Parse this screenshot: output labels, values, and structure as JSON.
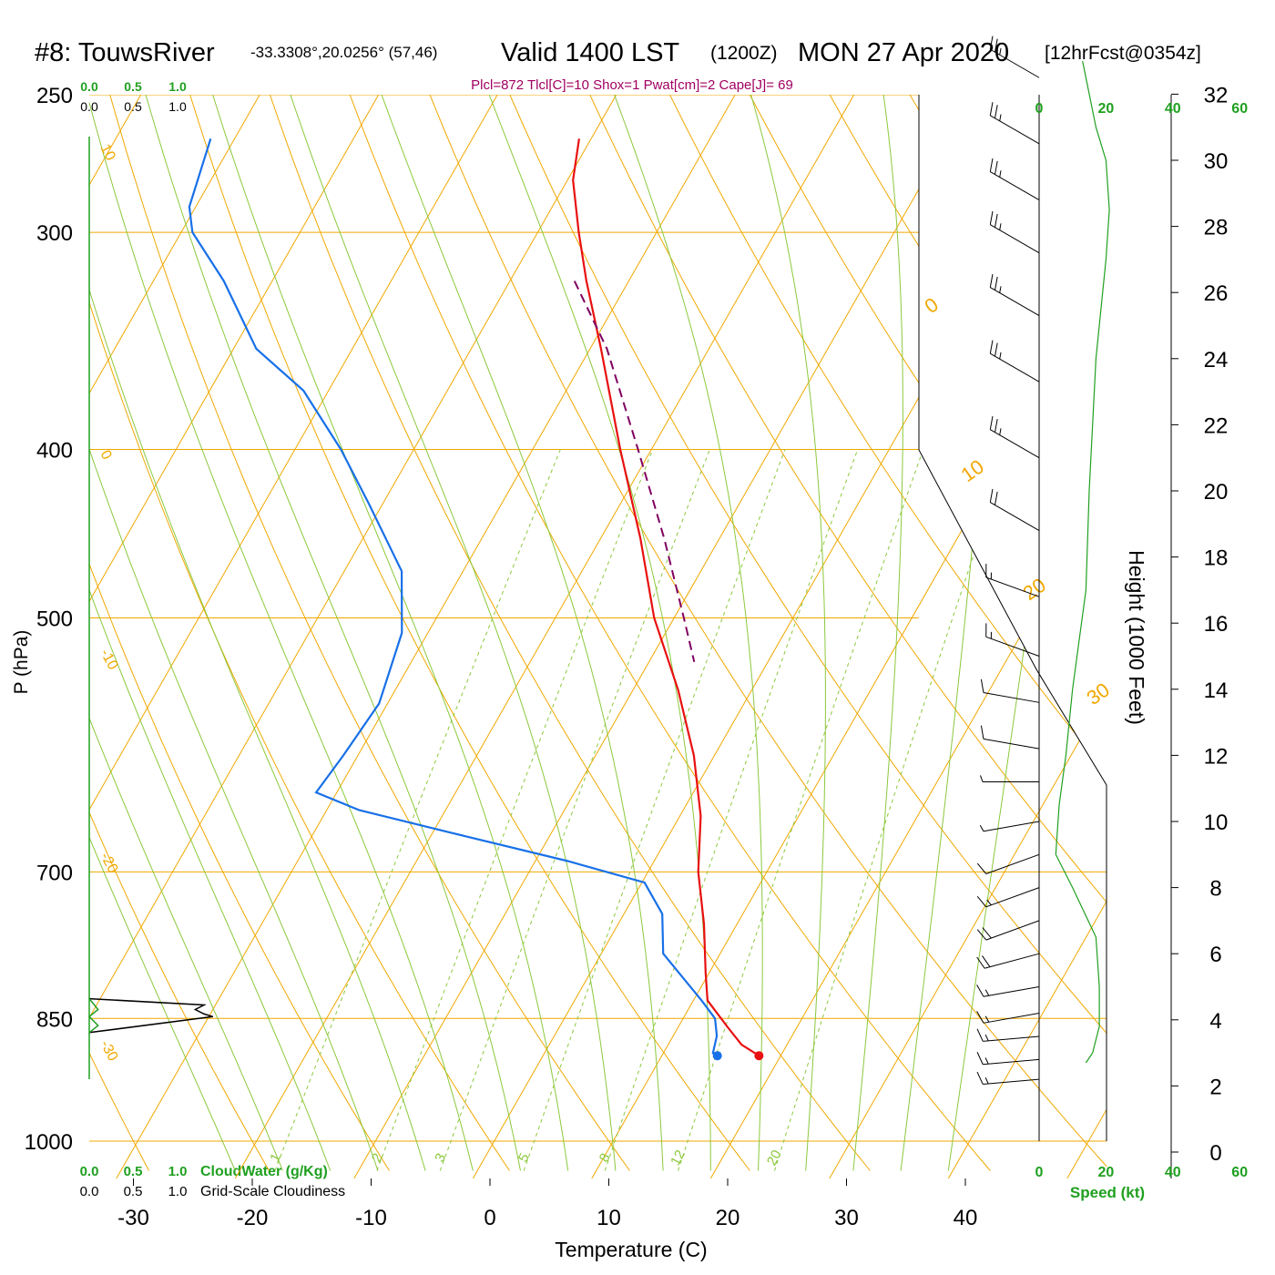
{
  "header": {
    "station": "#8: TouwsRiver",
    "coords": "-33.3308°,20.0256° (57,46)",
    "valid": "Valid 1400 LST",
    "zulu": "(1200Z)",
    "date": "MON 27 Apr 2020",
    "forecast": "[12hrFcst@0354z]",
    "indices": "Plcl=872 Tlcl[C]=10 Shox=1 Pwat[cm]=2 Cape[J]= 69"
  },
  "legend": {
    "cloudwater_ticks": [
      "0.0",
      "0.5",
      "1.0"
    ],
    "cloudiness_ticks": [
      "0.0",
      "0.5",
      "1.0"
    ],
    "cloudwater_label": "CloudWater (g/Kg)",
    "cloudiness_label": "Grid-Scale Cloudiness"
  },
  "colors": {
    "isotherm": "#f0a800",
    "dry_adiabat": "#f0a800",
    "moist_adiabat": "#8cc83c",
    "mixing_ratio": "#8cc83c",
    "temperature": "#e81010",
    "dewpoint": "#1870e8",
    "parcel": "#800060",
    "cloudwater": "#20a020",
    "speed": "#20a020",
    "indices": "#a00060"
  },
  "chart_data": {
    "type": "skew-t",
    "xlabel": "Temperature (C)",
    "ylabel": "P (hPa)",
    "height_label": "Height (1000 Feet)",
    "speed_label": "Speed (kt)",
    "x_ticks": [
      -30,
      -20,
      -10,
      0,
      10,
      20,
      30,
      40
    ],
    "p_ticks": [
      250,
      300,
      400,
      500,
      700,
      850,
      1000
    ],
    "pressure_range": [
      250,
      1040
    ],
    "height_ticks": [
      0,
      2,
      4,
      6,
      8,
      10,
      12,
      14,
      16,
      18,
      20,
      22,
      24,
      26,
      28,
      30,
      32
    ],
    "speed_ticks": [
      "0",
      "20",
      "40",
      "60"
    ],
    "isotherm_labels": [
      "10",
      "0",
      "-10",
      "-20",
      "-30",
      "0",
      "10",
      "20",
      "30"
    ],
    "mixing_ratio_labels": [
      "1",
      "2",
      "3",
      "5",
      "8",
      "12",
      "20"
    ],
    "mixing_ratios": [
      1,
      2,
      3,
      5,
      8,
      12,
      20
    ],
    "temperature_profile": [
      {
        "p": 265,
        "t": -41.0
      },
      {
        "p": 280,
        "t": -39.5
      },
      {
        "p": 300,
        "t": -36.5
      },
      {
        "p": 320,
        "t": -33.5
      },
      {
        "p": 350,
        "t": -29.0
      },
      {
        "p": 400,
        "t": -22.5
      },
      {
        "p": 450,
        "t": -16.5
      },
      {
        "p": 500,
        "t": -11.5
      },
      {
        "p": 550,
        "t": -6.0
      },
      {
        "p": 600,
        "t": -1.5
      },
      {
        "p": 650,
        "t": 2.0
      },
      {
        "p": 700,
        "t": 4.5
      },
      {
        "p": 750,
        "t": 7.5
      },
      {
        "p": 800,
        "t": 10.0
      },
      {
        "p": 830,
        "t": 11.5
      },
      {
        "p": 860,
        "t": 14.5
      },
      {
        "p": 880,
        "t": 16.5
      },
      {
        "p": 893,
        "t": 18.5
      }
    ],
    "dewpoint_profile": [
      {
        "p": 265,
        "t": -72.0
      },
      {
        "p": 290,
        "t": -70.5
      },
      {
        "p": 300,
        "t": -69.0
      },
      {
        "p": 320,
        "t": -64.0
      },
      {
        "p": 350,
        "t": -58.0
      },
      {
        "p": 370,
        "t": -52.0
      },
      {
        "p": 400,
        "t": -46.0
      },
      {
        "p": 430,
        "t": -41.0
      },
      {
        "p": 470,
        "t": -35.0
      },
      {
        "p": 510,
        "t": -32.0
      },
      {
        "p": 560,
        "t": -30.5
      },
      {
        "p": 600,
        "t": -31.0
      },
      {
        "p": 630,
        "t": -31.5
      },
      {
        "p": 645,
        "t": -27.0
      },
      {
        "p": 665,
        "t": -18.0
      },
      {
        "p": 690,
        "t": -7.0
      },
      {
        "p": 710,
        "t": 0.5
      },
      {
        "p": 740,
        "t": 3.5
      },
      {
        "p": 780,
        "t": 5.5
      },
      {
        "p": 830,
        "t": 11.0
      },
      {
        "p": 850,
        "t": 13.0
      },
      {
        "p": 870,
        "t": 14.0
      },
      {
        "p": 890,
        "t": 14.5
      },
      {
        "p": 893,
        "t": 15.0
      }
    ],
    "parcel_profile": [
      {
        "p": 320,
        "t": -34.5
      },
      {
        "p": 350,
        "t": -28.5
      },
      {
        "p": 400,
        "t": -21.0
      },
      {
        "p": 450,
        "t": -14.5
      },
      {
        "p": 500,
        "t": -9.0
      },
      {
        "p": 530,
        "t": -6.0
      }
    ],
    "surface": {
      "p": 893,
      "t": 18.5,
      "td": 15.0
    },
    "cloudwater_profile": [
      {
        "p": 828,
        "v": 0.0
      },
      {
        "p": 840,
        "v": 0.1
      },
      {
        "p": 848,
        "v": 0.0
      },
      {
        "p": 858,
        "v": 0.1
      },
      {
        "p": 866,
        "v": 0.0
      }
    ],
    "cloudiness_profile": [
      {
        "p": 828,
        "v": 0.0
      },
      {
        "p": 835,
        "v": 1.3
      },
      {
        "p": 840,
        "v": 1.2
      },
      {
        "p": 845,
        "v": 1.3
      },
      {
        "p": 848,
        "v": 1.4
      },
      {
        "p": 866,
        "v": 0.0
      }
    ],
    "wind_profile": [
      {
        "h": 32.5,
        "spd": 25,
        "dir": 300
      },
      {
        "h": 30.5,
        "spd": 25,
        "dir": 300
      },
      {
        "h": 28.8,
        "spd": 25,
        "dir": 300
      },
      {
        "h": 27.2,
        "spd": 25,
        "dir": 300
      },
      {
        "h": 25.3,
        "spd": 25,
        "dir": 300
      },
      {
        "h": 23.3,
        "spd": 25,
        "dir": 300
      },
      {
        "h": 21.0,
        "spd": 25,
        "dir": 300
      },
      {
        "h": 18.8,
        "spd": 20,
        "dir": 300
      },
      {
        "h": 16.8,
        "spd": 15,
        "dir": 290
      },
      {
        "h": 15.0,
        "spd": 15,
        "dir": 290
      },
      {
        "h": 13.6,
        "spd": 10,
        "dir": 280
      },
      {
        "h": 12.2,
        "spd": 10,
        "dir": 280
      },
      {
        "h": 11.2,
        "spd": 5,
        "dir": 270
      },
      {
        "h": 10.0,
        "spd": 5,
        "dir": 260
      },
      {
        "h": 9.0,
        "spd": 10,
        "dir": 250
      },
      {
        "h": 8.0,
        "spd": 15,
        "dir": 250
      },
      {
        "h": 7.0,
        "spd": 20,
        "dir": 250
      },
      {
        "h": 6.0,
        "spd": 20,
        "dir": 255
      },
      {
        "h": 5.0,
        "spd": 15,
        "dir": 260
      },
      {
        "h": 4.2,
        "spd": 15,
        "dir": 260
      },
      {
        "h": 3.5,
        "spd": 15,
        "dir": 265
      },
      {
        "h": 2.8,
        "spd": 15,
        "dir": 265
      },
      {
        "h": 2.2,
        "spd": 15,
        "dir": 265
      }
    ],
    "speed_profile": [
      {
        "h": 33.0,
        "spd": 13
      },
      {
        "h": 31.0,
        "spd": 17
      },
      {
        "h": 30.0,
        "spd": 20
      },
      {
        "h": 28.5,
        "spd": 21
      },
      {
        "h": 27.0,
        "spd": 20
      },
      {
        "h": 24.0,
        "spd": 17
      },
      {
        "h": 20.0,
        "spd": 15
      },
      {
        "h": 17.0,
        "spd": 14
      },
      {
        "h": 14.0,
        "spd": 10
      },
      {
        "h": 12.0,
        "spd": 8
      },
      {
        "h": 10.5,
        "spd": 6
      },
      {
        "h": 9.0,
        "spd": 5
      },
      {
        "h": 8.0,
        "spd": 10
      },
      {
        "h": 6.5,
        "spd": 17
      },
      {
        "h": 5.0,
        "spd": 18
      },
      {
        "h": 3.8,
        "spd": 18
      },
      {
        "h": 3.0,
        "spd": 16
      },
      {
        "h": 2.7,
        "spd": 14
      }
    ]
  }
}
